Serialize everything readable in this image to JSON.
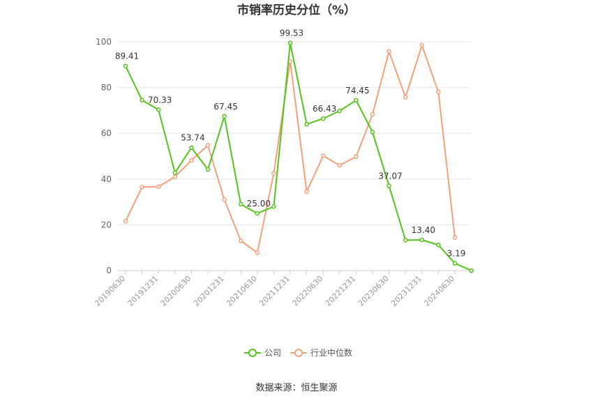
{
  "chart_data": {
    "type": "line",
    "title": "市销率历史分位（%）",
    "ylim": [
      0,
      100
    ],
    "yticks": [
      0,
      20,
      40,
      60,
      80,
      100
    ],
    "x": [
      "20190630",
      "20190930",
      "20191231",
      "20200331",
      "20200630",
      "20200930",
      "20201231",
      "20210331",
      "20210630",
      "20210930",
      "20211231",
      "20220331",
      "20220630",
      "20220930",
      "20221231",
      "20230331",
      "20230630",
      "20230930",
      "20231231",
      "20240331",
      "20240630",
      "20240930"
    ],
    "xtick_labels": [
      "20190630",
      "20191231",
      "20200630",
      "20201231",
      "20210630",
      "20211231",
      "20220630",
      "20221231",
      "20230630",
      "20231231",
      "20240630"
    ],
    "grid": true,
    "legend_position": "bottom",
    "series": [
      {
        "name": "公司",
        "color": "#52c41a",
        "values": [
          89.41,
          74.5,
          70.33,
          42.8,
          53.74,
          44.2,
          67.45,
          29.0,
          25.0,
          28.0,
          99.53,
          64.0,
          66.43,
          69.8,
          74.45,
          60.5,
          37.07,
          13.3,
          13.4,
          11.2,
          3.19,
          0.0
        ],
        "labels": {
          "0": "89.41",
          "2": "70.33",
          "4": "53.74",
          "6": "67.45",
          "8": "25.00",
          "10": "99.53",
          "12": "66.43",
          "14": "74.45",
          "16": "37.07",
          "18": "13.40",
          "20": "3.19"
        }
      },
      {
        "name": "行业中位数",
        "color": "#f4a07a",
        "values": [
          21.5,
          36.5,
          36.7,
          41.0,
          48.2,
          54.8,
          31.0,
          13.0,
          7.8,
          42.5,
          91.5,
          34.5,
          50.2,
          46.0,
          49.8,
          68.3,
          95.8,
          75.8,
          98.5,
          78.0,
          14.5,
          null
        ]
      }
    ]
  },
  "source": "数据来源：恒生聚源"
}
